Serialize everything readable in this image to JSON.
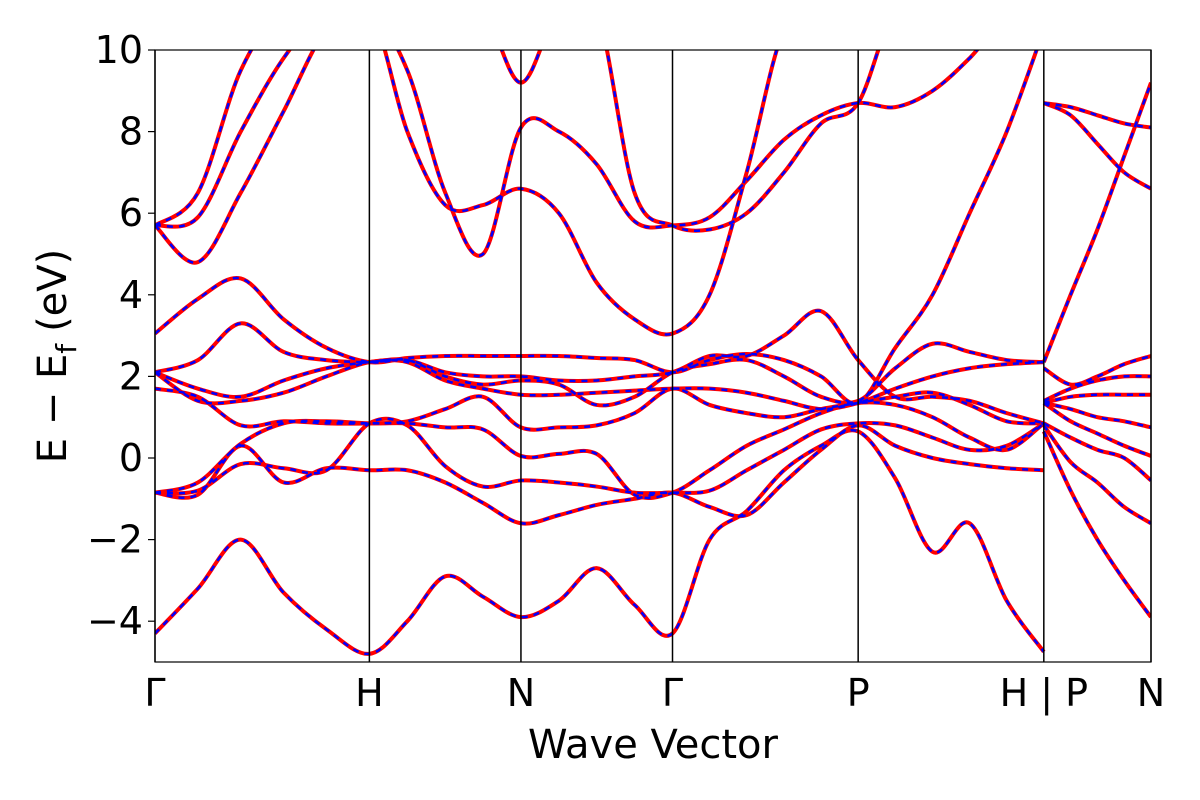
{
  "chart_data": {
    "type": "line",
    "xlabel": "Wave Vector",
    "ylabel": {
      "text": "E − E",
      "subscript": "f",
      "suffix": "(eV)"
    },
    "x": [
      0,
      0.2,
      0.4,
      0.6,
      0.8,
      1,
      1.177,
      1.354,
      1.53,
      1.707,
      1.884,
      2.06,
      2.237,
      2.414,
      2.587,
      2.76,
      2.934,
      3.107,
      3.28,
      3.453,
      3.627,
      3.8,
      3.973,
      4.146,
      4.146,
      4.271,
      4.396,
      4.521,
      4.646
    ],
    "bands": [
      [
        -4.3,
        -3.2,
        -2.0,
        -3.3,
        -4.2,
        -4.8,
        -4.0,
        -2.9,
        -3.4,
        -3.9,
        -3.5,
        -2.7,
        -3.6,
        -4.3,
        -2.0,
        -1.3,
        -0.3,
        0.3,
        0.65,
        -0.5,
        -2.3,
        -1.6,
        -3.5,
        -4.75,
        0.65,
        -0.8,
        -2.0,
        -3.0,
        -3.9
      ],
      [
        -0.85,
        -0.9,
        0.3,
        -0.6,
        -0.25,
        -0.3,
        -0.3,
        -0.6,
        -1.1,
        -1.6,
        -1.4,
        -1.15,
        -1.0,
        -0.85,
        -1.2,
        -1.4,
        -0.6,
        0.2,
        0.8,
        0.3,
        0.0,
        -0.15,
        -0.25,
        -0.3,
        0.8,
        -0.1,
        -0.6,
        -1.2,
        -1.6
      ],
      [
        -0.85,
        -0.8,
        -0.15,
        -0.25,
        -0.3,
        0.85,
        0.8,
        -0.2,
        -0.7,
        -0.55,
        -0.6,
        -0.7,
        -0.85,
        -0.85,
        -0.8,
        -0.3,
        0.2,
        0.7,
        0.85,
        0.8,
        0.5,
        0.2,
        0.3,
        0.85,
        0.85,
        0.5,
        0.2,
        0.0,
        -0.55
      ],
      [
        -0.85,
        -0.6,
        0.35,
        0.85,
        0.9,
        0.85,
        0.85,
        0.75,
        0.7,
        0.05,
        0.1,
        0.1,
        -0.9,
        -0.85,
        -0.3,
        0.3,
        0.7,
        1.1,
        1.35,
        1.3,
        1.0,
        0.5,
        0.2,
        0.85,
        1.35,
        0.9,
        0.6,
        0.3,
        0.05
      ],
      [
        1.7,
        1.5,
        0.8,
        0.9,
        0.85,
        0.85,
        0.9,
        1.2,
        1.5,
        0.75,
        0.75,
        0.8,
        1.1,
        1.7,
        1.3,
        1.1,
        1.0,
        1.2,
        1.35,
        1.5,
        1.6,
        1.3,
        0.9,
        0.85,
        1.35,
        1.2,
        1.0,
        0.9,
        0.75
      ],
      [
        2.1,
        1.4,
        1.4,
        1.6,
        2.0,
        2.35,
        2.35,
        1.9,
        1.7,
        1.55,
        1.55,
        1.6,
        1.65,
        1.7,
        1.7,
        1.6,
        1.4,
        1.2,
        1.35,
        1.7,
        2.0,
        2.2,
        2.3,
        2.35,
        1.35,
        1.5,
        1.55,
        1.55,
        1.55
      ],
      [
        2.1,
        1.7,
        1.5,
        1.9,
        2.2,
        2.35,
        2.4,
        2.0,
        1.8,
        1.9,
        1.8,
        1.3,
        1.5,
        2.1,
        2.3,
        2.4,
        2.0,
        1.5,
        1.4,
        2.2,
        2.8,
        2.6,
        2.4,
        2.35,
        1.4,
        1.7,
        1.9,
        2.0,
        2.0
      ],
      [
        2.1,
        2.4,
        3.3,
        2.6,
        2.4,
        2.35,
        2.4,
        2.1,
        2.0,
        2.0,
        1.9,
        1.9,
        2.0,
        2.1,
        2.5,
        2.5,
        3.0,
        3.6,
        2.4,
        1.5,
        1.5,
        1.4,
        1.1,
        0.85,
        2.2,
        1.8,
        2.0,
        2.3,
        2.5
      ],
      [
        3.05,
        3.9,
        4.4,
        3.4,
        2.7,
        2.35,
        2.45,
        2.5,
        2.5,
        2.5,
        2.5,
        2.45,
        2.4,
        2.1,
        2.4,
        2.55,
        2.4,
        2.0,
        1.35,
        2.7,
        4.0,
        6.0,
        8.0,
        10.5,
        2.35,
        4.0,
        5.6,
        7.4,
        9.2
      ],
      [
        5.7,
        4.8,
        6.5,
        8.5,
        10.5,
        11,
        8.0,
        6.2,
        6.2,
        6.6,
        6.0,
        4.3,
        3.4,
        3.05,
        4.0,
        7.0,
        10.5,
        11,
        11,
        11,
        11,
        11,
        11,
        11,
        8.7,
        8.4,
        7.7,
        7.0,
        6.6
      ],
      [
        5.7,
        5.9,
        8.0,
        9.8,
        11,
        11,
        9.5,
        6.5,
        5.0,
        8.1,
        8.0,
        7.2,
        5.8,
        5.7,
        5.9,
        6.8,
        7.8,
        8.4,
        8.7,
        8.6,
        9.0,
        9.8,
        10.8,
        11,
        8.7,
        8.6,
        8.4,
        8.2,
        8.1
      ],
      [
        5.7,
        6.5,
        9.5,
        11,
        11,
        11,
        11,
        11,
        11,
        9.2,
        11,
        11,
        6.5,
        5.7,
        5.6,
        6.0,
        7.0,
        8.2,
        8.7,
        11,
        11,
        11,
        11,
        11,
        11,
        11,
        11,
        11,
        11
      ]
    ],
    "styles": [
      {
        "color": "#ff0000",
        "dash": "solid"
      },
      {
        "color": "#0000ff",
        "dash": "dashed"
      }
    ],
    "xlim": [
      0,
      4.646
    ],
    "ylim": [
      -5,
      10
    ],
    "xticks": [
      {
        "value": 0,
        "label": "Γ"
      },
      {
        "value": 1,
        "label": "H"
      },
      {
        "value": 1.707,
        "label": "N"
      },
      {
        "value": 2.414,
        "label": "Γ"
      },
      {
        "value": 3.28,
        "label": "P"
      },
      {
        "value": 4.146,
        "label": "H | P"
      },
      {
        "value": 4.646,
        "label": "N"
      }
    ],
    "yticks": [
      {
        "value": -4,
        "label": "−4"
      },
      {
        "value": -2,
        "label": "−2"
      },
      0,
      2,
      4,
      6,
      8,
      10
    ]
  }
}
